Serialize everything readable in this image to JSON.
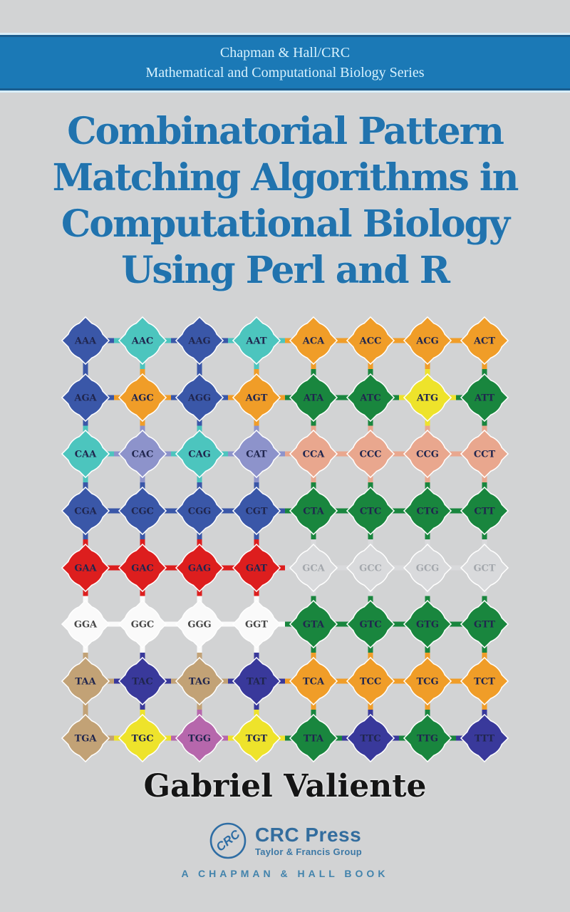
{
  "series_band": {
    "line1": "Chapman & Hall/CRC",
    "line2": "Mathematical and Computational Biology Series"
  },
  "title": {
    "lines": [
      "Combinatorial Pattern",
      "Matching Algorithms in",
      "Computational Biology",
      "Using Perl and R"
    ],
    "color": "#2173ae"
  },
  "author": "Gabriel Valiente",
  "publisher": {
    "logo_text": "CRC",
    "name": "CRC Press",
    "group": "Taylor & Francis Group",
    "imprint": "A CHAPMAN & HALL BOOK",
    "logo_color": "#2e6da4"
  },
  "graph": {
    "rows": 8,
    "columns": 8,
    "palette": {
      "blue": "#3a57a8",
      "teal": "#4cc5be",
      "orange": "#f09d28",
      "green": "#19863e",
      "yellow": "#eee32b",
      "periwinkle": "#8d93cb",
      "salmon": "#e9a78e",
      "red": "#dd1e1e",
      "gray": "#d9dadc",
      "white": "#fafafa",
      "tan": "#c2a276",
      "navy": "#39399b",
      "orchid": "#b667ac"
    },
    "text_color_default": "#20264e",
    "nodes": [
      {
        "label": "AAA",
        "color": "blue"
      },
      {
        "label": "AAC",
        "color": "teal"
      },
      {
        "label": "AAG",
        "color": "blue"
      },
      {
        "label": "AAT",
        "color": "teal"
      },
      {
        "label": "ACA",
        "color": "orange"
      },
      {
        "label": "ACC",
        "color": "orange"
      },
      {
        "label": "ACG",
        "color": "orange"
      },
      {
        "label": "ACT",
        "color": "orange"
      },
      {
        "label": "AGA",
        "color": "blue"
      },
      {
        "label": "AGC",
        "color": "orange"
      },
      {
        "label": "AGG",
        "color": "blue"
      },
      {
        "label": "AGT",
        "color": "orange"
      },
      {
        "label": "ATA",
        "color": "green"
      },
      {
        "label": "ATC",
        "color": "green"
      },
      {
        "label": "ATG",
        "color": "yellow"
      },
      {
        "label": "ATT",
        "color": "green"
      },
      {
        "label": "CAA",
        "color": "teal"
      },
      {
        "label": "CAC",
        "color": "periwinkle"
      },
      {
        "label": "CAG",
        "color": "teal"
      },
      {
        "label": "CAT",
        "color": "periwinkle"
      },
      {
        "label": "CCA",
        "color": "salmon"
      },
      {
        "label": "CCC",
        "color": "salmon"
      },
      {
        "label": "CCG",
        "color": "salmon"
      },
      {
        "label": "CCT",
        "color": "salmon"
      },
      {
        "label": "CGA",
        "color": "blue"
      },
      {
        "label": "CGC",
        "color": "blue"
      },
      {
        "label": "CGG",
        "color": "blue"
      },
      {
        "label": "CGT",
        "color": "blue"
      },
      {
        "label": "CTA",
        "color": "green"
      },
      {
        "label": "CTC",
        "color": "green"
      },
      {
        "label": "CTG",
        "color": "green"
      },
      {
        "label": "CTT",
        "color": "green"
      },
      {
        "label": "GAA",
        "color": "red"
      },
      {
        "label": "GAC",
        "color": "red"
      },
      {
        "label": "GAG",
        "color": "red"
      },
      {
        "label": "GAT",
        "color": "red"
      },
      {
        "label": "GCA",
        "color": "gray",
        "tc": "#a4a8ad"
      },
      {
        "label": "GCC",
        "color": "gray",
        "tc": "#a4a8ad"
      },
      {
        "label": "GCG",
        "color": "gray",
        "tc": "#a4a8ad"
      },
      {
        "label": "GCT",
        "color": "gray",
        "tc": "#a4a8ad"
      },
      {
        "label": "GGA",
        "color": "white",
        "tc": "#474747"
      },
      {
        "label": "GGC",
        "color": "white",
        "tc": "#474747"
      },
      {
        "label": "GGG",
        "color": "white",
        "tc": "#474747"
      },
      {
        "label": "GGT",
        "color": "white",
        "tc": "#474747"
      },
      {
        "label": "GTA",
        "color": "green"
      },
      {
        "label": "GTC",
        "color": "green"
      },
      {
        "label": "GTG",
        "color": "green"
      },
      {
        "label": "GTT",
        "color": "green"
      },
      {
        "label": "TAA",
        "color": "tan"
      },
      {
        "label": "TAC",
        "color": "navy"
      },
      {
        "label": "TAG",
        "color": "tan"
      },
      {
        "label": "TAT",
        "color": "navy"
      },
      {
        "label": "TCA",
        "color": "orange"
      },
      {
        "label": "TCC",
        "color": "orange"
      },
      {
        "label": "TCG",
        "color": "orange"
      },
      {
        "label": "TCT",
        "color": "orange"
      },
      {
        "label": "TGA",
        "color": "tan"
      },
      {
        "label": "TGC",
        "color": "yellow"
      },
      {
        "label": "TGG",
        "color": "orchid"
      },
      {
        "label": "TGT",
        "color": "yellow"
      },
      {
        "label": "TTA",
        "color": "green"
      },
      {
        "label": "TTC",
        "color": "navy"
      },
      {
        "label": "TTG",
        "color": "green"
      },
      {
        "label": "TTT",
        "color": "navy"
      }
    ]
  }
}
